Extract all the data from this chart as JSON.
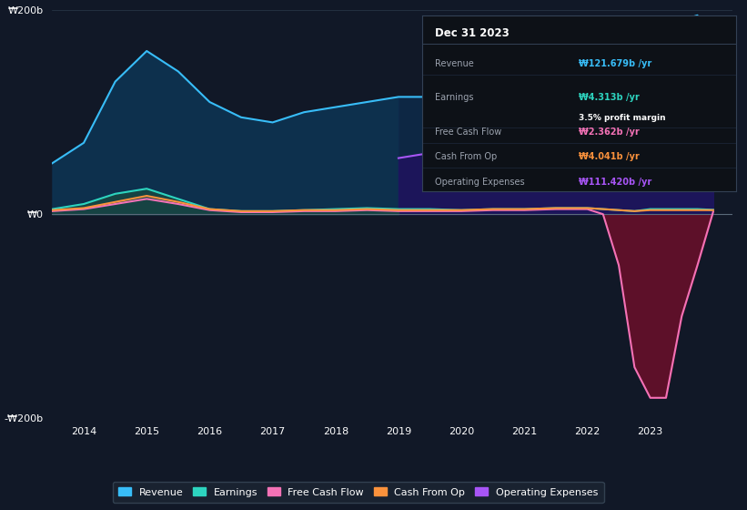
{
  "bg_color": "#111827",
  "plot_bg_color": "#111827",
  "years": [
    2013.5,
    2014,
    2014.5,
    2015,
    2015.5,
    2016,
    2016.5,
    2017,
    2017.5,
    2018,
    2018.5,
    2019,
    2019.5,
    2020,
    2020.5,
    2021,
    2021.5,
    2022,
    2022.25,
    2022.5,
    2022.75,
    2023,
    2023.25,
    2023.5,
    2023.75,
    2024.0
  ],
  "revenue": [
    50,
    70,
    130,
    160,
    140,
    110,
    95,
    90,
    100,
    105,
    110,
    115,
    115,
    120,
    125,
    140,
    155,
    175,
    175,
    170,
    170,
    185,
    190,
    190,
    195,
    121
  ],
  "earnings": [
    5,
    10,
    20,
    25,
    15,
    5,
    3,
    3,
    4,
    5,
    6,
    5,
    5,
    4,
    5,
    5,
    6,
    6,
    5,
    4,
    3,
    5,
    5,
    5,
    5,
    4.3
  ],
  "free_cash_flow": [
    3,
    5,
    10,
    15,
    10,
    4,
    2,
    2,
    3,
    3,
    4,
    3,
    3,
    3,
    4,
    4,
    5,
    5,
    0,
    -50,
    -150,
    -180,
    -180,
    -100,
    -50,
    2.4
  ],
  "cash_from_op": [
    4,
    6,
    12,
    18,
    12,
    5,
    3,
    3,
    4,
    4,
    5,
    4,
    4,
    4,
    5,
    5,
    6,
    6,
    5,
    4,
    3,
    4,
    4,
    4,
    4,
    4.0
  ],
  "op_expenses": [
    0,
    0,
    0,
    0,
    0,
    0,
    0,
    0,
    0,
    0,
    0,
    55,
    60,
    70,
    80,
    90,
    95,
    100,
    100,
    100,
    100,
    105,
    110,
    112,
    115,
    111
  ],
  "ylim": [
    -200,
    200
  ],
  "yticks": [
    -200,
    0,
    200
  ],
  "ytick_labels": [
    "-₩200b",
    "₩0",
    "₩200b"
  ],
  "xtick_years": [
    2014,
    2015,
    2016,
    2017,
    2018,
    2019,
    2020,
    2021,
    2022,
    2023
  ],
  "color_revenue": "#38bdf8",
  "color_earnings": "#2dd4bf",
  "color_free_cash_flow": "#f472b6",
  "color_cash_from_op": "#fb923c",
  "color_op_expenses": "#a855f7",
  "legend_items": [
    "Revenue",
    "Earnings",
    "Free Cash Flow",
    "Cash From Op",
    "Operating Expenses"
  ],
  "legend_colors": [
    "#38bdf8",
    "#2dd4bf",
    "#f472b6",
    "#fb923c",
    "#a855f7"
  ],
  "box_title": "Dec 31 2023",
  "box_rows": [
    {
      "label": "Revenue",
      "label_color": "#9ca3af",
      "value": "₩121.679b /yr",
      "value_color": "#38bdf8",
      "sub": null
    },
    {
      "label": "Earnings",
      "label_color": "#9ca3af",
      "value": "₩4.313b /yr",
      "value_color": "#2dd4bf",
      "sub": "3.5% profit margin"
    },
    {
      "label": "Free Cash Flow",
      "label_color": "#9ca3af",
      "value": "₩2.362b /yr",
      "value_color": "#f472b6",
      "sub": null
    },
    {
      "label": "Cash From Op",
      "label_color": "#9ca3af",
      "value": "₩4.041b /yr",
      "value_color": "#fb923c",
      "sub": null
    },
    {
      "label": "Operating Expenses",
      "label_color": "#9ca3af",
      "value": "₩111.420b /yr",
      "value_color": "#a855f7",
      "sub": null
    }
  ]
}
